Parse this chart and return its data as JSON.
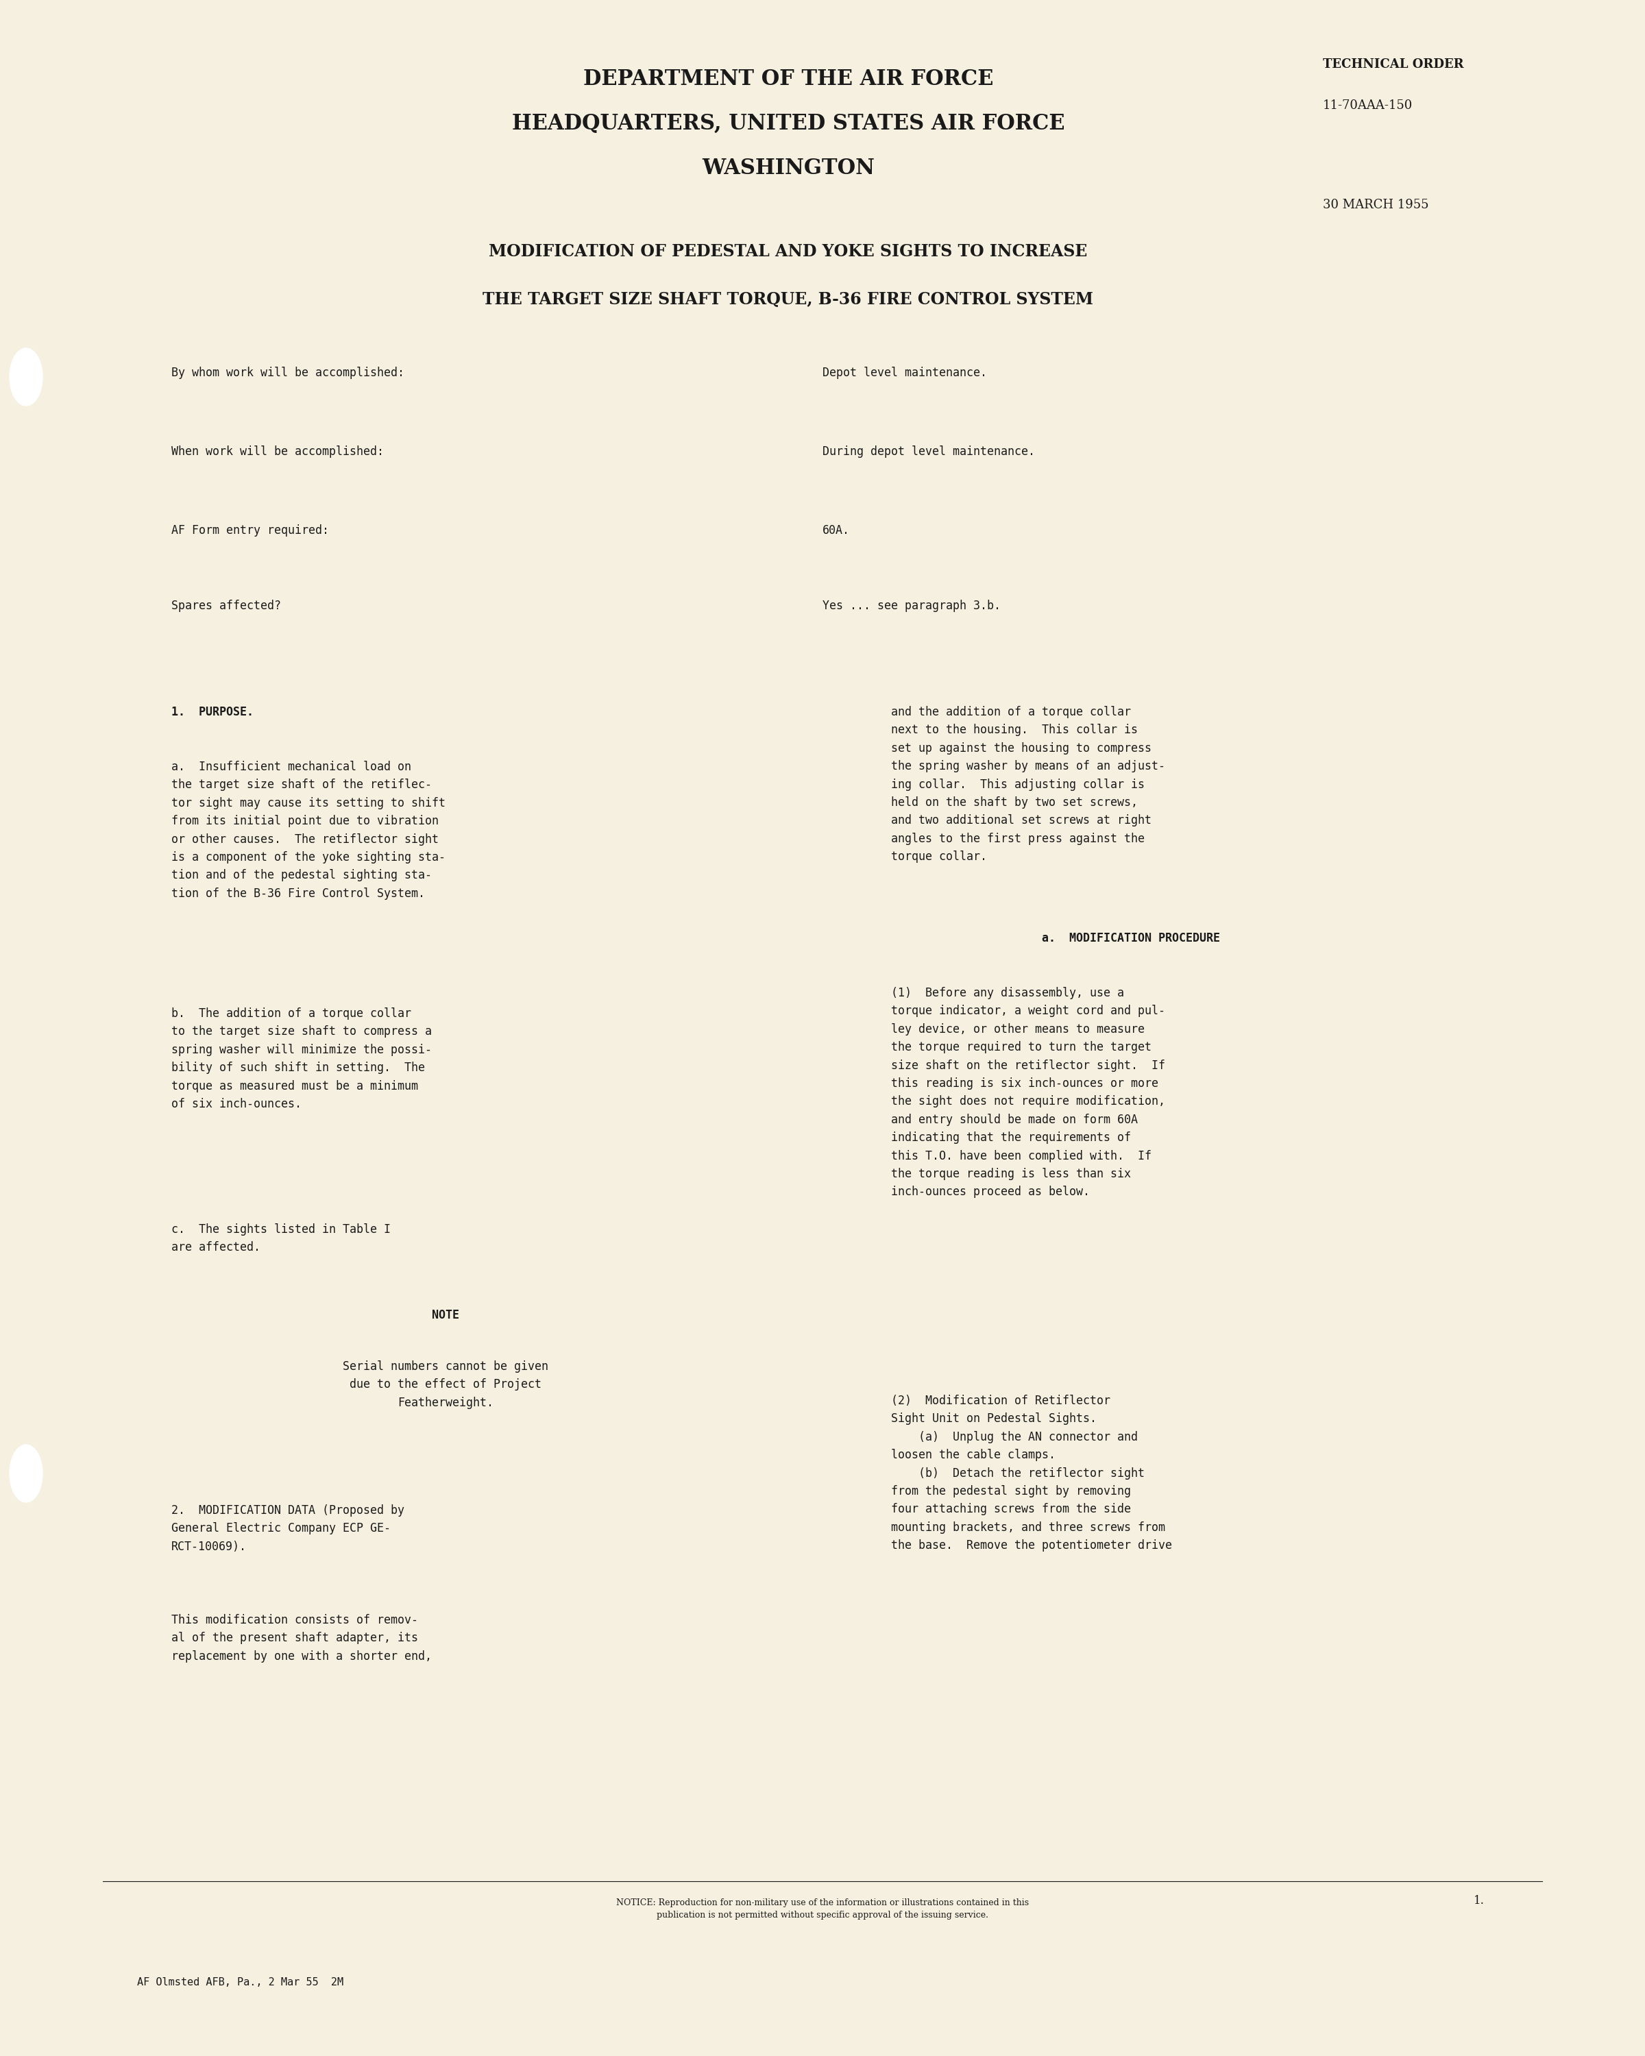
{
  "bg_color": "#f5f0e0",
  "text_color": "#1a1a1a",
  "page_width": 24.0,
  "page_height": 30.0,
  "header_line1": "DEPARTMENT OF THE AIR FORCE",
  "header_line2": "HEADQUARTERS, UNITED STATES AIR FORCE",
  "header_line3": "WASHINGTON",
  "tech_order_label": "TECHNICAL ORDER",
  "tech_order_number": "11-70AAA-150",
  "date": "30 MARCH 1955",
  "title_line1": "MODIFICATION OF PEDESTAL AND YOKE SIGHTS TO INCREASE",
  "title_line2": "THE TARGET SIZE SHAFT TORQUE, B-36 FIRE CONTROL SYSTEM",
  "field1_label": "By whom work will be accomplished:",
  "field1_value": "Depot level maintenance.",
  "field2_label": "When work will be accomplished:",
  "field2_value": "During depot level maintenance.",
  "field3_label": "AF Form entry required:",
  "field3_value": "60A.",
  "field4_label": "Spares affected?",
  "field4_value": "Yes ... see paragraph 3.b.",
  "section1_heading": "1.  PURPOSE.",
  "para_a_text": "a.  Insufficient mechanical load on\nthe target size shaft of the retiflec-\ntor sight may cause its setting to shift\nfrom its initial point due to vibration\nor other causes.  The retiflector sight\nis a component of the yoke sighting sta-\ntion and of the pedestal sighting sta-\ntion of the B-36 Fire Control System.",
  "para_b_text": "b.  The addition of a torque collar\nto the target size shaft to compress a\nspring washer will minimize the possi-\nbility of such shift in setting.  The\ntorque as measured must be a minimum\nof six inch-ounces.",
  "para_c_text": "c.  The sights listed in Table I\nare affected.",
  "note_heading": "NOTE",
  "note_text": "Serial numbers cannot be given\ndue to the effect of Project\nFeatherweight.",
  "section2_heading": "2.  MODIFICATION DATA (Proposed by\nGeneral Electric Company ECP GE-\nRCT-10069).",
  "section2_text": "This modification consists of remov-\nal of the present shaft adapter, its\nreplacement by one with a shorter end,",
  "right_col_text1": "and the addition of a torque collar\nnext to the housing.  This collar is\nset up against the housing to compress\nthe spring washer by means of an adjust-\ning collar.  This adjusting collar is\nheld on the shaft by two set screws,\nand two additional set screws at right\nangles to the first press against the\ntorque collar.",
  "right_subheading": "a.  MODIFICATION PROCEDURE",
  "right_col_text2": "(1)  Before any disassembly, use a\ntorque indicator, a weight cord and pul-\nley device, or other means to measure\nthe torque required to turn the target\nsize shaft on the retiflector sight.  If\nthis reading is six inch-ounces or more\nthe sight does not require modification,\nand entry should be made on form 60A\nindicating that the requirements of\nthis T.O. have been complied with.  If\nthe torque reading is less than six\ninch-ounces proceed as below.",
  "right_col_text3": "(2)  Modification of Retiflector\nSight Unit on Pedestal Sights.\n    (a)  Unplug the AN connector and\nloosen the cable clamps.\n    (b)  Detach the retiflector sight\nfrom the pedestal sight by removing\nfour attaching screws from the side\nmounting brackets, and three screws from\nthe base.  Remove the potentiometer drive",
  "notice_text": "NOTICE: Reproduction for non-military use of the information or illustrations contained in this\npublication is not permitted without specific approval of the issuing service.",
  "page_number": "1.",
  "footer_text": "AF Olmsted AFB, Pa., 2 Mar 55  2M"
}
